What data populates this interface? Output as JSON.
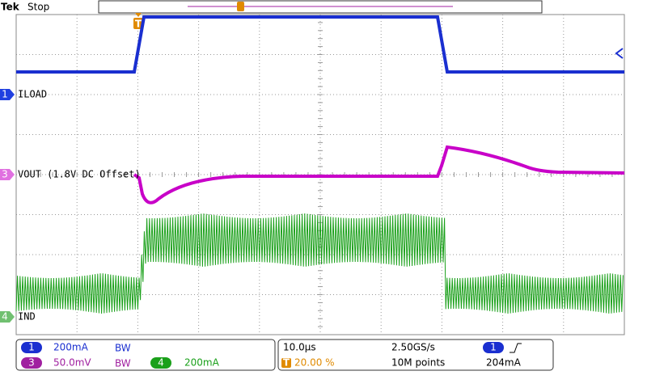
{
  "header": {
    "brand": "Tek",
    "status": "Stop",
    "trigger_marker": "T"
  },
  "channels": [
    {
      "number": "1",
      "label": "ILOAD"
    },
    {
      "number": "3",
      "label": "VOUT (1.8V DC Offset)"
    },
    {
      "number": "4",
      "label": "IND"
    }
  ],
  "readout": {
    "ch1": {
      "number": "1",
      "scale": "200mA",
      "bandwidth": "BW"
    },
    "ch3": {
      "number": "3",
      "scale": "50.0mV",
      "bandwidth": "BW"
    },
    "ch4": {
      "number": "4",
      "scale": "200mA"
    }
  },
  "acquisition": {
    "time_scale": "10.0µs",
    "sample_rate": "2.50GS/s",
    "trigger_badge": "T",
    "trigger_position": "20.00 %",
    "record_length": "10M points",
    "trigger_source": "1",
    "trigger_level": "204mA"
  }
}
